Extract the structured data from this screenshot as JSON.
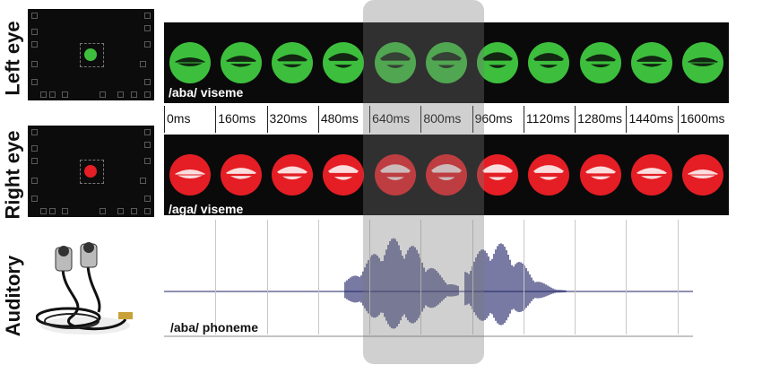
{
  "rows": {
    "left_eye": "Left eye",
    "right_eye": "Right eye",
    "auditory": "Auditory"
  },
  "top_strip": {
    "caption": "/aba/ viseme",
    "color": "#3dbf3d"
  },
  "bottom_strip": {
    "caption": "/aga/ viseme",
    "color": "#e41e24"
  },
  "timeline": [
    "0ms",
    "160ms",
    "320ms",
    "480ms",
    "640ms",
    "800ms",
    "960ms",
    "1120ms",
    "1280ms",
    "1440ms",
    "1600ms"
  ],
  "audio": {
    "caption": "/aba/ phoneme",
    "wave_color": "#1e2266"
  },
  "icons": {
    "earphones": "earphones-icon"
  }
}
